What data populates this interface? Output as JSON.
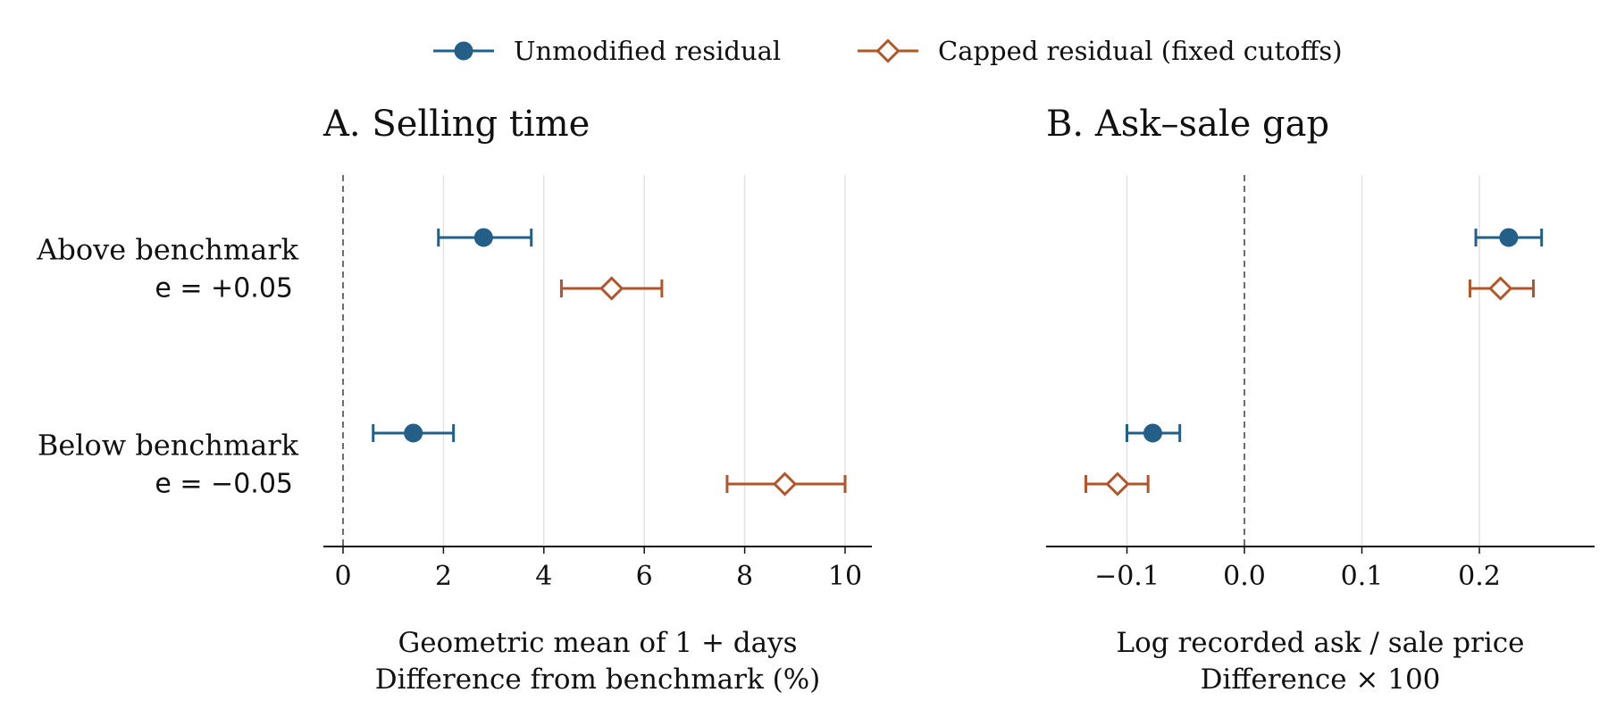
{
  "chart_data": {
    "type": "dot-whisker",
    "legend": {
      "placement": "top-center",
      "entries": [
        {
          "label": "Unmodified residual",
          "marker": "filled-circle",
          "color": "#235f87"
        },
        {
          "label": "Capped residual (fixed cutoffs)",
          "marker": "open-diamond",
          "color": "#b0562a"
        }
      ]
    },
    "row_labels": [
      {
        "line1": "Above benchmark",
        "line2": "e = +0.05"
      },
      {
        "line1": "Below benchmark",
        "line2": "e = −0.05"
      }
    ],
    "panels": [
      {
        "title": "A. Selling time",
        "xlabel_line1": "Geometric mean of 1 + days",
        "xlabel_line2": "Difference from benchmark (%)",
        "xlim": [
          -0.4,
          10.5
        ],
        "xticks": [
          0,
          2,
          4,
          6,
          8,
          10
        ],
        "xtick_labels": [
          "0",
          "2",
          "4",
          "6",
          "8",
          "10"
        ],
        "grid": "vertical",
        "reference_line": 0,
        "series": [
          {
            "name": "Unmodified residual",
            "points": [
              {
                "row": "Above benchmark",
                "estimate": 2.8,
                "ci_low": 1.9,
                "ci_high": 3.75
              },
              {
                "row": "Below benchmark",
                "estimate": 1.4,
                "ci_low": 0.6,
                "ci_high": 2.2
              }
            ]
          },
          {
            "name": "Capped residual (fixed cutoffs)",
            "points": [
              {
                "row": "Above benchmark",
                "estimate": 5.35,
                "ci_low": 4.35,
                "ci_high": 6.35
              },
              {
                "row": "Below benchmark",
                "estimate": 8.8,
                "ci_low": 7.65,
                "ci_high": 10.0
              }
            ]
          }
        ]
      },
      {
        "title": "B. Ask–sale gap",
        "xlabel_line1": "Log recorded ask / sale price",
        "xlabel_line2": "Difference × 100",
        "xlim": [
          -0.17,
          0.295
        ],
        "xticks": [
          -0.1,
          0.0,
          0.1,
          0.2
        ],
        "xtick_labels": [
          "−0.1",
          "0.0",
          "0.1",
          "0.2"
        ],
        "grid": "vertical",
        "reference_line": 0,
        "series": [
          {
            "name": "Unmodified residual",
            "points": [
              {
                "row": "Above benchmark",
                "estimate": 0.225,
                "ci_low": 0.197,
                "ci_high": 0.253
              },
              {
                "row": "Below benchmark",
                "estimate": -0.078,
                "ci_low": -0.1,
                "ci_high": -0.055
              }
            ]
          },
          {
            "name": "Capped residual (fixed cutoffs)",
            "points": [
              {
                "row": "Above benchmark",
                "estimate": 0.218,
                "ci_low": 0.192,
                "ci_high": 0.246
              },
              {
                "row": "Below benchmark",
                "estimate": -0.108,
                "ci_low": -0.135,
                "ci_high": -0.082
              }
            ]
          }
        ]
      }
    ]
  }
}
